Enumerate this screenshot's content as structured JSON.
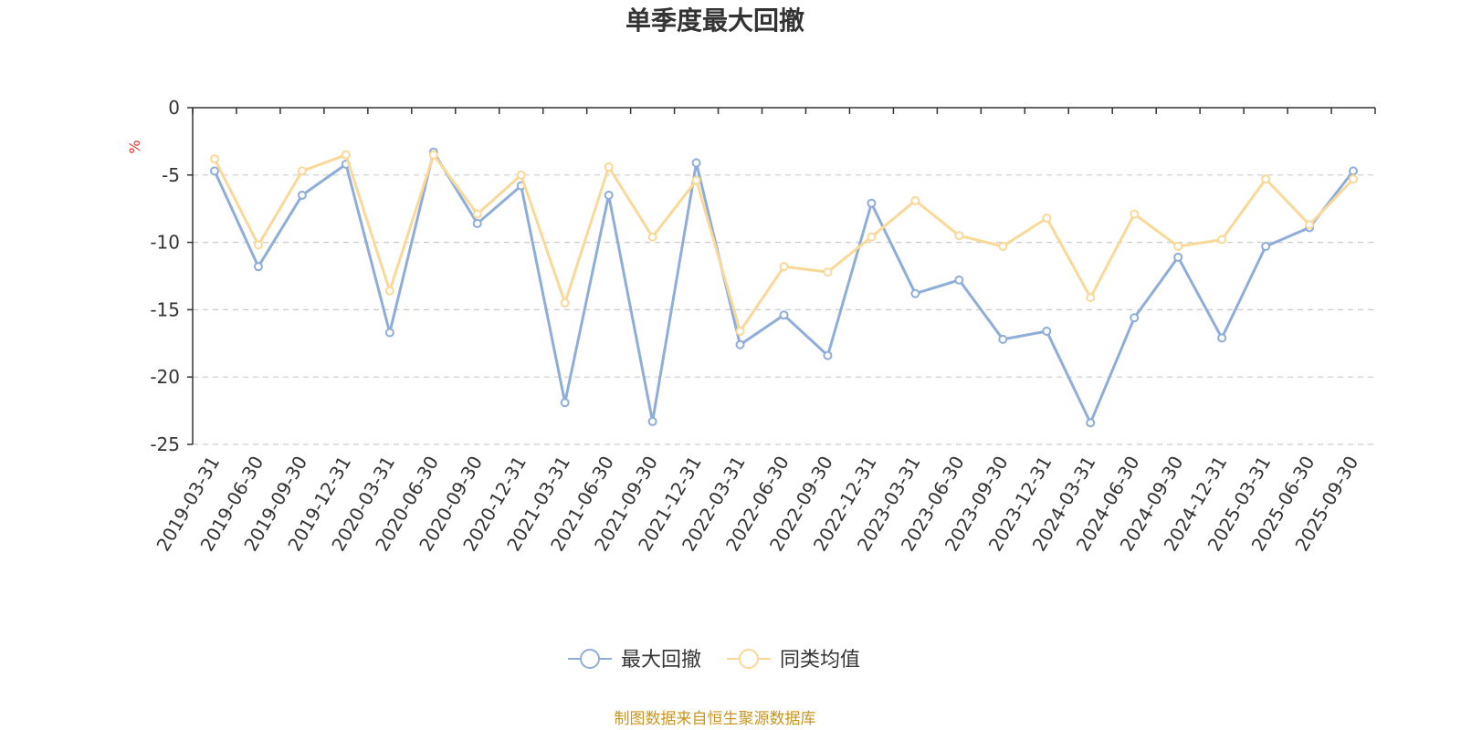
{
  "chart_data": {
    "type": "line",
    "title": "单季度最大回撤",
    "ylabel": "%",
    "ylim": [
      -25,
      0
    ],
    "yticks": [
      0,
      -5,
      -10,
      -15,
      -20,
      -25
    ],
    "grid": true,
    "legend_position": "bottom-center",
    "categories": [
      "2019-03-31",
      "2019-06-30",
      "2019-09-30",
      "2019-12-31",
      "2020-03-31",
      "2020-06-30",
      "2020-09-30",
      "2020-12-31",
      "2021-03-31",
      "2021-06-30",
      "2021-09-30",
      "2021-12-31",
      "2022-03-31",
      "2022-06-30",
      "2022-09-30",
      "2022-12-31",
      "2023-03-31",
      "2023-06-30",
      "2023-09-30",
      "2023-12-31",
      "2024-03-31",
      "2024-06-30",
      "2024-09-30",
      "2024-12-31",
      "2025-03-31",
      "2025-06-30",
      "2025-09-30"
    ],
    "series": [
      {
        "name": "最大回撤",
        "color": "#8eadd9",
        "values": [
          -4.7,
          -11.8,
          -6.5,
          -4.2,
          -16.7,
          -3.3,
          -8.6,
          -5.8,
          -21.9,
          -6.5,
          -23.3,
          -4.1,
          -17.6,
          -15.4,
          -18.4,
          -7.1,
          -13.8,
          -12.8,
          -17.2,
          -16.6,
          -23.4,
          -15.6,
          -11.1,
          -17.1,
          -10.3,
          -8.9,
          -4.7
        ]
      },
      {
        "name": "同类均值",
        "color": "#fad898",
        "values": [
          -3.8,
          -10.2,
          -4.7,
          -3.5,
          -13.6,
          -3.5,
          -7.9,
          -5.0,
          -14.5,
          -4.4,
          -9.6,
          -5.4,
          -16.6,
          -11.8,
          -12.2,
          -9.6,
          -6.9,
          -9.5,
          -10.3,
          -8.2,
          -14.1,
          -7.9,
          -10.3,
          -9.8,
          -5.3,
          -8.7,
          -5.3
        ]
      }
    ]
  },
  "source": {
    "text": "制图数据来自恒生聚源数据库",
    "color": "#c8961e"
  },
  "unit_color": "#e8312c",
  "axis_color": "#333333",
  "grid_color": "#cccccc"
}
